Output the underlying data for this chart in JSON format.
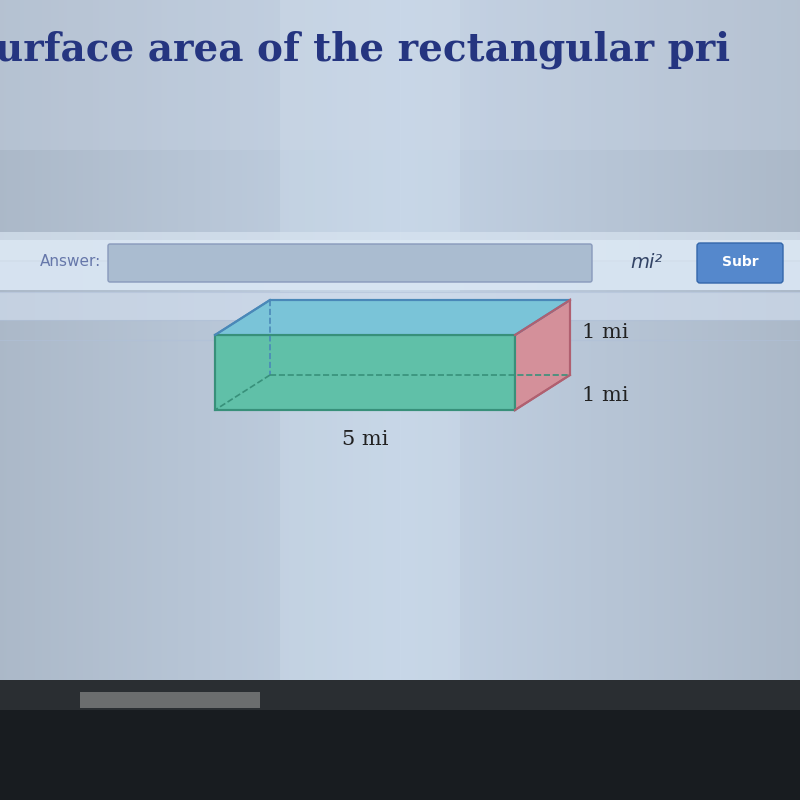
{
  "title": "urface area of the rectangular pri",
  "title_color": "#253580",
  "title_fontsize": 28,
  "label_5mi": "5 mi",
  "label_1mi_top": "1 mi",
  "label_1mi_side": "1 mi",
  "label_fontsize": 15,
  "top_face_color": "#7ac4d8",
  "top_face_edge": "#4a88b8",
  "front_face_color": "#60c0a8",
  "front_face_edge": "#38907a",
  "right_face_color": "#d4909a",
  "right_face_edge": "#b06070",
  "answer_label": "Answer:",
  "mi2_label": "mi²",
  "submit_label": "Subr",
  "bg_main": "#c8d8e8",
  "bg_light_strip": "#dce8f2",
  "bg_dark_bottom": "#101820",
  "answer_box_color": "#aabcd8",
  "submit_btn_color": "#5588cc"
}
